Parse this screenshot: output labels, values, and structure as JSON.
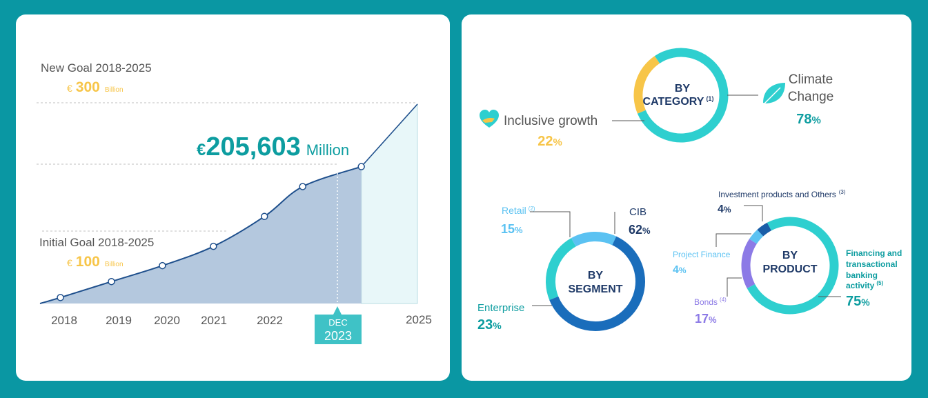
{
  "colors": {
    "background": "#0a97a3",
    "panel": "#ffffff",
    "teal": "#2ecfcf",
    "teal_text": "#0d9da0",
    "navy": "#1f3a68",
    "blue": "#1a6dbb",
    "light_blue": "#5bc2f2",
    "yellow": "#f7c548",
    "purple": "#8c7ae6",
    "area_fill": "#b4c8de",
    "projection_fill": "#e8f7f9",
    "line": "#1e4f8c"
  },
  "chart_data": [
    {
      "type": "area",
      "title": "€205,603 Million",
      "headline": {
        "currency": "€",
        "value": "205,603",
        "unit": "Million"
      },
      "new_goal": {
        "label": "New Goal 2018-2025",
        "currency": "€",
        "value": "300",
        "unit": "Billion"
      },
      "initial_goal": {
        "label": "Initial Goal 2018-2025",
        "currency": "€",
        "value": "100",
        "unit": "Billion"
      },
      "x_tick_labels": [
        "2018",
        "2019",
        "2020",
        "2021",
        "2022",
        "2025"
      ],
      "current_marker": {
        "month": "DEC",
        "year": "2023"
      },
      "x": [
        2018.0,
        2019.0,
        2020.0,
        2021.0,
        2022.0,
        2022.75,
        2023.9
      ],
      "values_billion": [
        9,
        33,
        57,
        86,
        131,
        176,
        206
      ],
      "projection": {
        "from_x": 2023.9,
        "to_x": 2025.0,
        "to_value": 300
      },
      "ylim": [
        0,
        300
      ],
      "xlim": [
        2017.6,
        2025.0
      ]
    },
    {
      "type": "pie",
      "title": "BY CATEGORY",
      "title_lines": [
        "BY",
        "CATEGORY"
      ],
      "footnote": "(1)",
      "slices": [
        {
          "label": "Climate Change",
          "label_lines": [
            "Climate",
            "Change"
          ],
          "value": 78,
          "display": "78",
          "color": "#2ecfcf"
        },
        {
          "label": "Inclusive growth",
          "value": 22,
          "display": "22",
          "color": "#f7c548"
        }
      ]
    },
    {
      "type": "pie",
      "title": "BY SEGMENT",
      "title_lines": [
        "BY",
        "SEGMENT"
      ],
      "slices": [
        {
          "label": "CIB",
          "value": 62,
          "display": "62",
          "color": "#1a6dbb"
        },
        {
          "label": "Enterprise",
          "value": 23,
          "display": "23",
          "color": "#2ecfcf"
        },
        {
          "label": "Retail",
          "footnote": "(2)",
          "value": 15,
          "display": "15",
          "color": "#5bc2f2"
        }
      ]
    },
    {
      "type": "pie",
      "title": "BY PRODUCT",
      "title_lines": [
        "BY",
        "PRODUCT"
      ],
      "slices": [
        {
          "label": "Financing and transactional banking activity",
          "label_lines": [
            "Financing and",
            "transactional",
            "banking",
            "activity"
          ],
          "footnote": "(5)",
          "value": 75,
          "display": "75",
          "color": "#2ecfcf"
        },
        {
          "label": "Bonds",
          "footnote": "(4)",
          "value": 17,
          "display": "17",
          "color": "#8c7ae6"
        },
        {
          "label": "Project Finance",
          "value": 4,
          "display": "4",
          "color": "#5bc2f2"
        },
        {
          "label": "Investment products and Others",
          "footnote": "(3)",
          "value": 4,
          "display": "4",
          "color": "#1a5ea8"
        }
      ]
    }
  ],
  "percent_sign": "%"
}
